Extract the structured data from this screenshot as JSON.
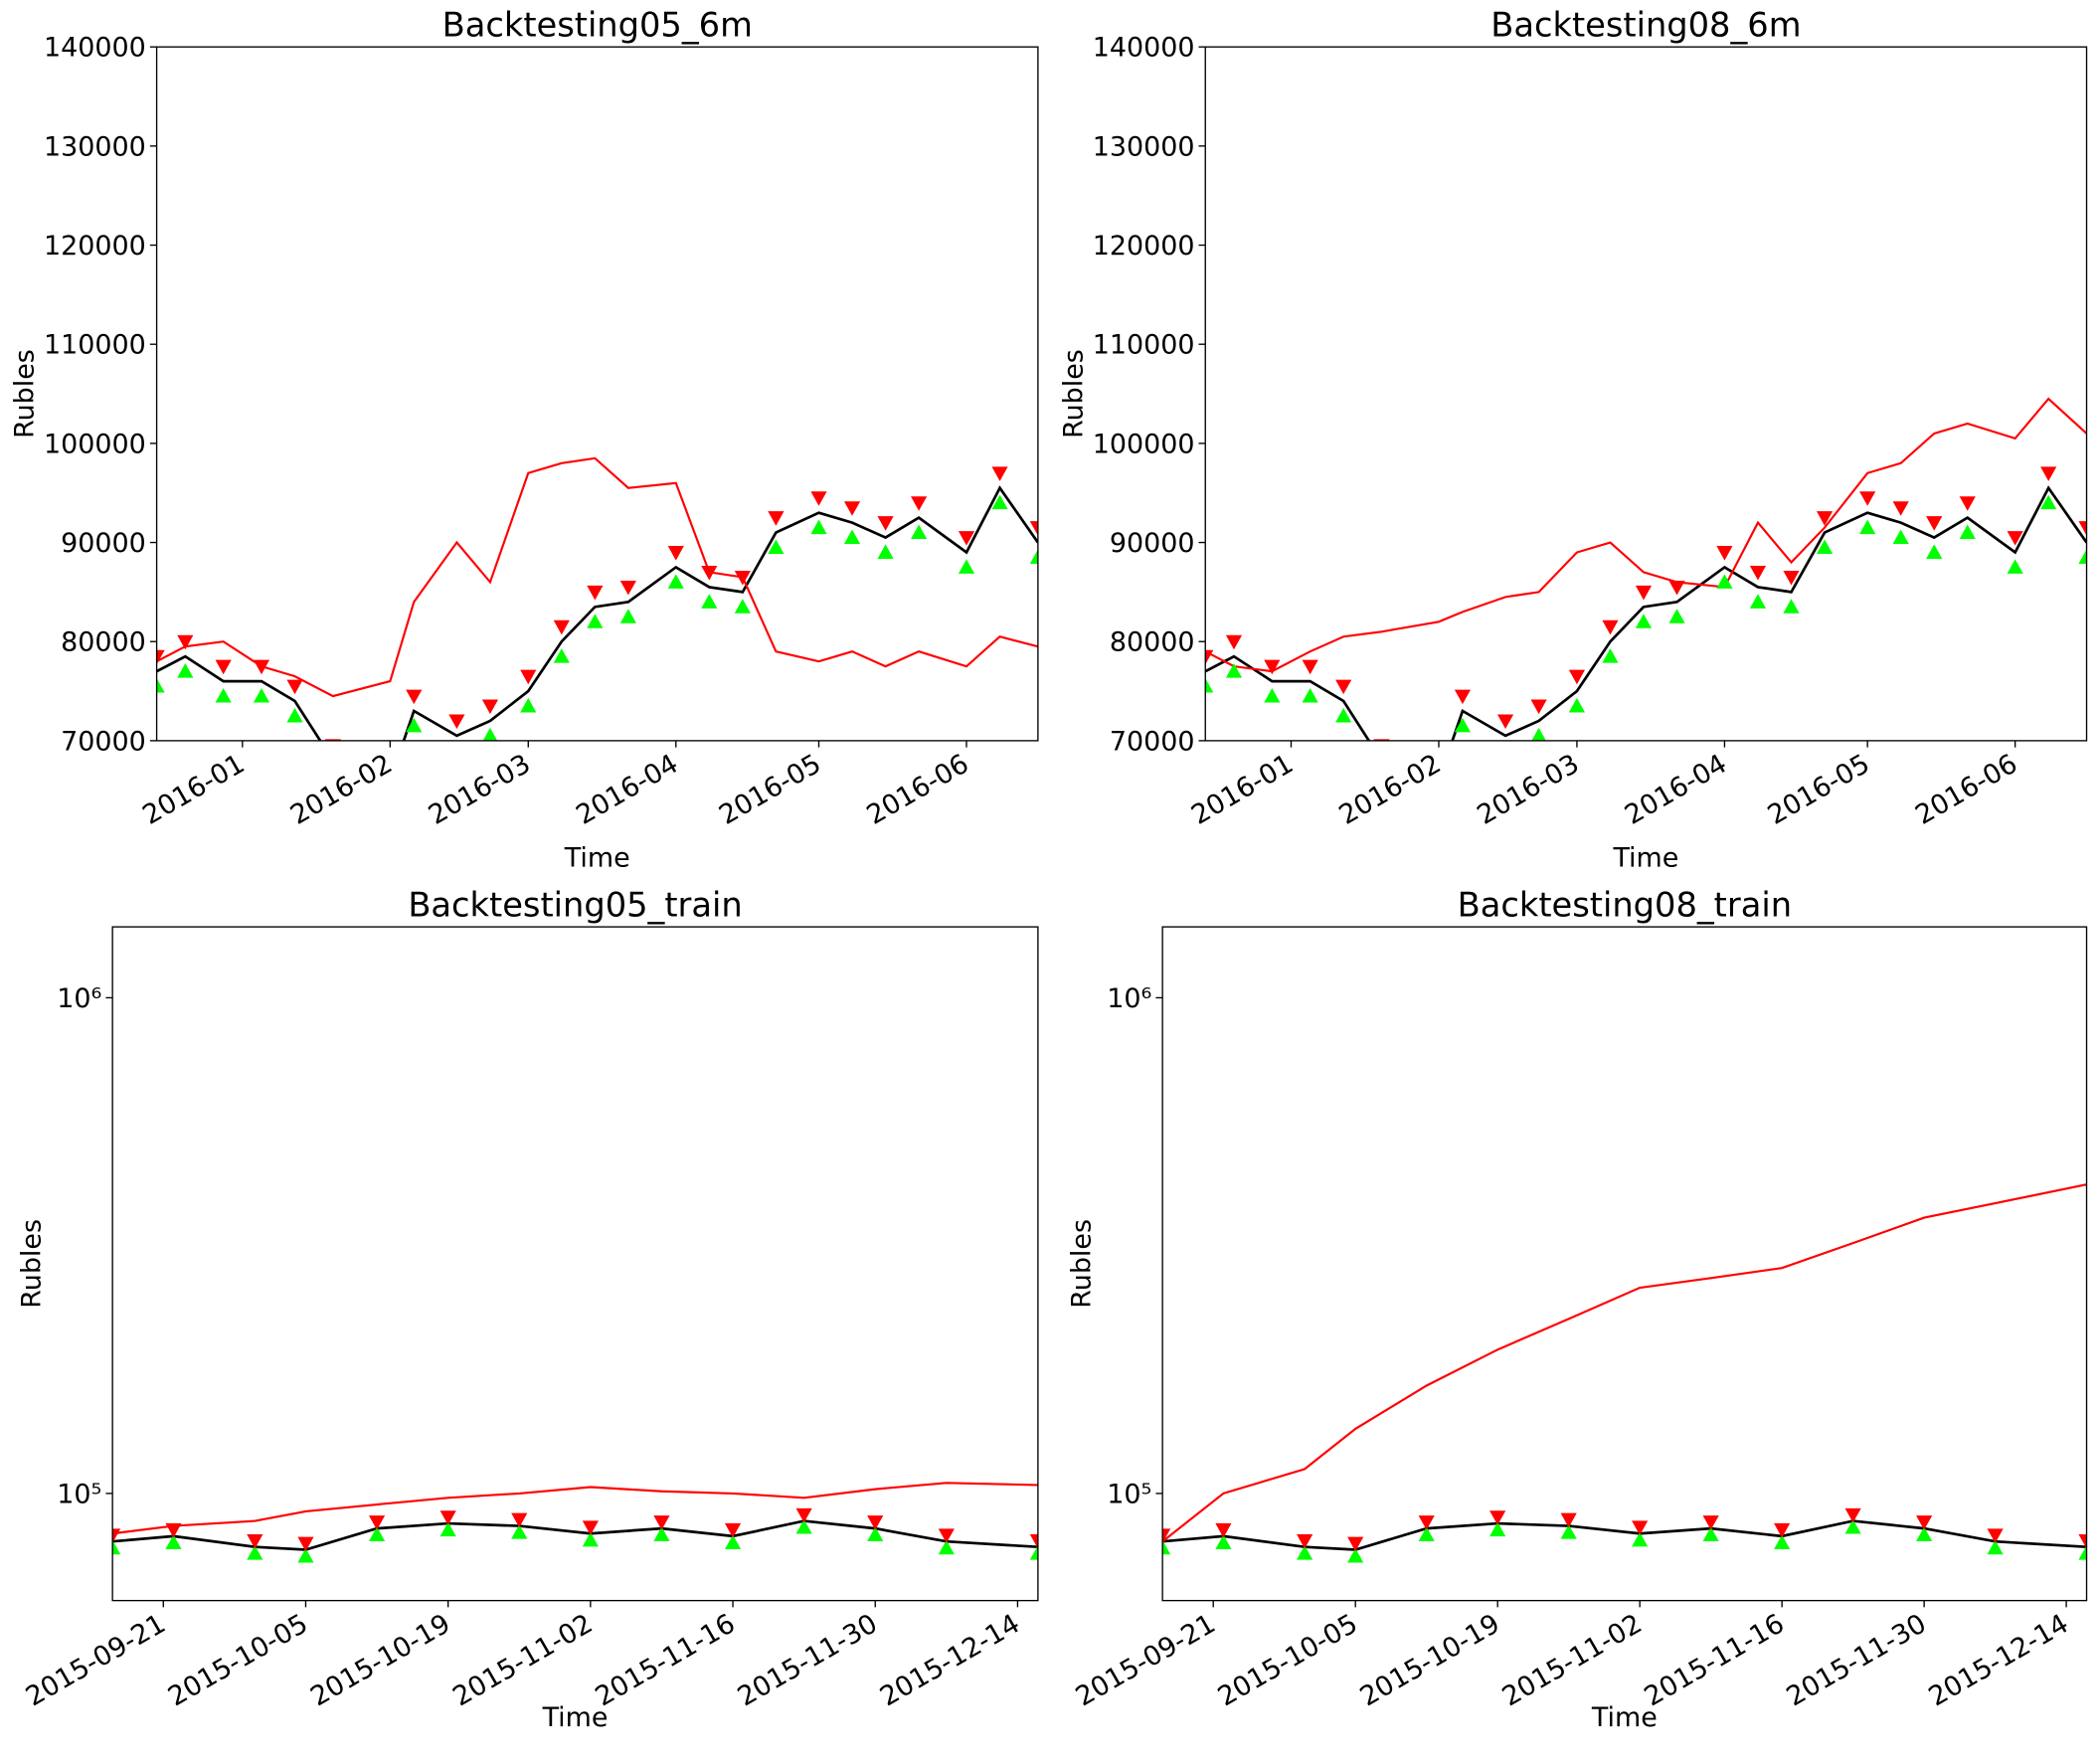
{
  "chart_data": [
    {
      "type": "line",
      "title": "Backtesting05_6m",
      "xlabel": "Time",
      "ylabel": "Rubles",
      "yscale": "linear",
      "grid": false,
      "x": [
        "2015-12-14",
        "2015-12-20",
        "2015-12-28",
        "2016-01-05",
        "2016-01-12",
        "2016-01-20",
        "2016-02-01",
        "2016-02-06",
        "2016-02-15",
        "2016-02-22",
        "2016-03-01",
        "2016-03-08",
        "2016-03-15",
        "2016-03-22",
        "2016-04-01",
        "2016-04-08",
        "2016-04-15",
        "2016-04-22",
        "2016-05-01",
        "2016-05-08",
        "2016-05-15",
        "2016-05-22",
        "2016-06-01",
        "2016-06-08",
        "2016-06-16"
      ],
      "xlim": [
        "2015-12-14",
        "2016-06-16"
      ],
      "xticks": [
        {
          "value": "2016-01-01",
          "label": "2016-01"
        },
        {
          "value": "2016-02-01",
          "label": "2016-02"
        },
        {
          "value": "2016-03-01",
          "label": "2016-03"
        },
        {
          "value": "2016-04-01",
          "label": "2016-04"
        },
        {
          "value": "2016-05-01",
          "label": "2016-05"
        },
        {
          "value": "2016-06-01",
          "label": "2016-06"
        }
      ],
      "ylim": [
        70000,
        140000
      ],
      "yticks": [
        70000,
        80000,
        90000,
        100000,
        110000,
        120000,
        130000,
        140000
      ],
      "series": [
        {
          "color": "#000000",
          "values": [
            77000,
            78500,
            76000,
            76000,
            74000,
            68000,
            66000,
            73000,
            70500,
            72000,
            75000,
            80000,
            83500,
            84000,
            87500,
            85500,
            85000,
            91000,
            93000,
            92000,
            90500,
            92500,
            89000,
            95500,
            90000
          ]
        },
        {
          "color": "#ff0000",
          "values": [
            78000,
            79500,
            80000,
            77500,
            76500,
            74500,
            76000,
            84000,
            90000,
            86000,
            97000,
            98000,
            98500,
            95500,
            96000,
            87000,
            86500,
            79000,
            78000,
            79000,
            77500,
            79000,
            77500,
            80500,
            79500
          ]
        },
        {
          "color": "#00ff00",
          "marker": "^",
          "values": [
            75500,
            77000,
            74500,
            74500,
            72500,
            66500,
            64500,
            71500,
            69000,
            70500,
            73500,
            78500,
            82000,
            82500,
            86000,
            84000,
            83500,
            89500,
            91500,
            90500,
            89000,
            91000,
            87500,
            94000,
            88500
          ]
        },
        {
          "color": "#ff0000",
          "marker": "v",
          "values": [
            78500,
            80000,
            77500,
            77500,
            75500,
            69500,
            67500,
            74500,
            72000,
            73500,
            76500,
            81500,
            85000,
            85500,
            89000,
            87000,
            86500,
            92500,
            94500,
            93500,
            92000,
            94000,
            90500,
            97000,
            91500
          ]
        }
      ]
    },
    {
      "type": "line",
      "title": "Backtesting08_6m",
      "xlabel": "Time",
      "ylabel": "Rubles",
      "yscale": "linear",
      "grid": false,
      "x": [
        "2015-12-14",
        "2015-12-20",
        "2015-12-28",
        "2016-01-05",
        "2016-01-12",
        "2016-01-20",
        "2016-02-01",
        "2016-02-06",
        "2016-02-15",
        "2016-02-22",
        "2016-03-01",
        "2016-03-08",
        "2016-03-15",
        "2016-03-22",
        "2016-04-01",
        "2016-04-08",
        "2016-04-15",
        "2016-04-22",
        "2016-05-01",
        "2016-05-08",
        "2016-05-15",
        "2016-05-22",
        "2016-06-01",
        "2016-06-08",
        "2016-06-16"
      ],
      "xlim": [
        "2015-12-14",
        "2016-06-16"
      ],
      "xticks": [
        {
          "value": "2016-01-01",
          "label": "2016-01"
        },
        {
          "value": "2016-02-01",
          "label": "2016-02"
        },
        {
          "value": "2016-03-01",
          "label": "2016-03"
        },
        {
          "value": "2016-04-01",
          "label": "2016-04"
        },
        {
          "value": "2016-05-01",
          "label": "2016-05"
        },
        {
          "value": "2016-06-01",
          "label": "2016-06"
        }
      ],
      "ylim": [
        70000,
        140000
      ],
      "yticks": [
        70000,
        80000,
        90000,
        100000,
        110000,
        120000,
        130000,
        140000
      ],
      "series": [
        {
          "color": "#000000",
          "values": [
            77000,
            78500,
            76000,
            76000,
            74000,
            68000,
            66000,
            73000,
            70500,
            72000,
            75000,
            80000,
            83500,
            84000,
            87500,
            85500,
            85000,
            91000,
            93000,
            92000,
            90500,
            92500,
            89000,
            95500,
            90000
          ]
        },
        {
          "color": "#ff0000",
          "values": [
            79000,
            77500,
            77000,
            79000,
            80500,
            81000,
            82000,
            83000,
            84500,
            85000,
            89000,
            90000,
            87000,
            86000,
            85500,
            92000,
            88000,
            91500,
            97000,
            98000,
            101000,
            102000,
            100500,
            104500,
            101000
          ]
        },
        {
          "color": "#00ff00",
          "marker": "^",
          "values": [
            75500,
            77000,
            74500,
            74500,
            72500,
            66500,
            64500,
            71500,
            69000,
            70500,
            73500,
            78500,
            82000,
            82500,
            86000,
            84000,
            83500,
            89500,
            91500,
            90500,
            89000,
            91000,
            87500,
            94000,
            88500
          ]
        },
        {
          "color": "#ff0000",
          "marker": "v",
          "values": [
            78500,
            80000,
            77500,
            77500,
            75500,
            69500,
            67500,
            74500,
            72000,
            73500,
            76500,
            81500,
            85000,
            85500,
            89000,
            87000,
            86500,
            92500,
            94500,
            93500,
            92000,
            94000,
            90500,
            97000,
            91500
          ]
        }
      ]
    },
    {
      "type": "line",
      "title": "Backtesting05_train",
      "xlabel": "Time",
      "ylabel": "Rubles",
      "yscale": "log",
      "grid": false,
      "x": [
        "2015-09-16",
        "2015-09-22",
        "2015-09-30",
        "2015-10-05",
        "2015-10-12",
        "2015-10-19",
        "2015-10-26",
        "2015-11-02",
        "2015-11-09",
        "2015-11-16",
        "2015-11-23",
        "2015-11-30",
        "2015-12-07",
        "2015-12-16"
      ],
      "xlim": [
        "2015-09-16",
        "2015-12-16"
      ],
      "xticks": [
        "2015-09-21",
        "2015-10-05",
        "2015-10-19",
        "2015-11-02",
        "2015-11-16",
        "2015-11-30",
        "2015-12-14"
      ],
      "ylim": [
        60800,
        1390000
      ],
      "yticks": [
        {
          "value": 100000,
          "label": "10⁵"
        },
        {
          "value": 1000000,
          "label": "10⁶"
        }
      ],
      "series": [
        {
          "color": "#000000",
          "values": [
            80000,
            82000,
            78000,
            77000,
            85000,
            87000,
            86000,
            83000,
            85000,
            82000,
            88000,
            85000,
            80000,
            78000
          ]
        },
        {
          "color": "#ff0000",
          "values": [
            83000,
            86000,
            88000,
            92000,
            95000,
            98000,
            100000,
            103000,
            101000,
            100000,
            98000,
            102000,
            105000,
            104000
          ]
        },
        {
          "color": "#00ff00",
          "marker": "^",
          "values": [
            77600,
            79500,
            75700,
            74700,
            82500,
            84400,
            83400,
            80500,
            82500,
            79500,
            85400,
            82500,
            77600,
            75700
          ]
        },
        {
          "color": "#ff0000",
          "marker": "v",
          "values": [
            82400,
            84500,
            80300,
            79300,
            87600,
            89600,
            88600,
            85500,
            87600,
            84500,
            90600,
            87600,
            82400,
            80300
          ]
        }
      ]
    },
    {
      "type": "line",
      "title": "Backtesting08_train",
      "xlabel": "Time",
      "ylabel": "Rubles",
      "yscale": "log",
      "grid": false,
      "x": [
        "2015-09-16",
        "2015-09-22",
        "2015-09-30",
        "2015-10-05",
        "2015-10-12",
        "2015-10-19",
        "2015-10-26",
        "2015-11-02",
        "2015-11-09",
        "2015-11-16",
        "2015-11-23",
        "2015-11-30",
        "2015-12-07",
        "2015-12-16"
      ],
      "xlim": [
        "2015-09-16",
        "2015-12-16"
      ],
      "xticks": [
        "2015-09-21",
        "2015-10-05",
        "2015-10-19",
        "2015-11-02",
        "2015-11-16",
        "2015-11-30",
        "2015-12-14"
      ],
      "ylim": [
        60800,
        1390000
      ],
      "yticks": [
        {
          "value": 100000,
          "label": "10⁵"
        },
        {
          "value": 1000000,
          "label": "10⁶"
        }
      ],
      "series": [
        {
          "color": "#000000",
          "values": [
            80000,
            82000,
            78000,
            77000,
            85000,
            87000,
            86000,
            83000,
            85000,
            82000,
            88000,
            85000,
            80000,
            78000
          ]
        },
        {
          "color": "#ff0000",
          "values": [
            80000,
            100000,
            112000,
            135000,
            165000,
            195000,
            225000,
            260000,
            272000,
            285000,
            320000,
            360000,
            385000,
            420000
          ]
        },
        {
          "color": "#00ff00",
          "marker": "^",
          "values": [
            77600,
            79500,
            75700,
            74700,
            82500,
            84400,
            83400,
            80500,
            82500,
            79500,
            85400,
            82500,
            77600,
            75700
          ]
        },
        {
          "color": "#ff0000",
          "marker": "v",
          "values": [
            82400,
            84500,
            80300,
            79300,
            87600,
            89600,
            88600,
            85500,
            87600,
            84500,
            90600,
            87600,
            82400,
            80300
          ]
        }
      ]
    }
  ]
}
